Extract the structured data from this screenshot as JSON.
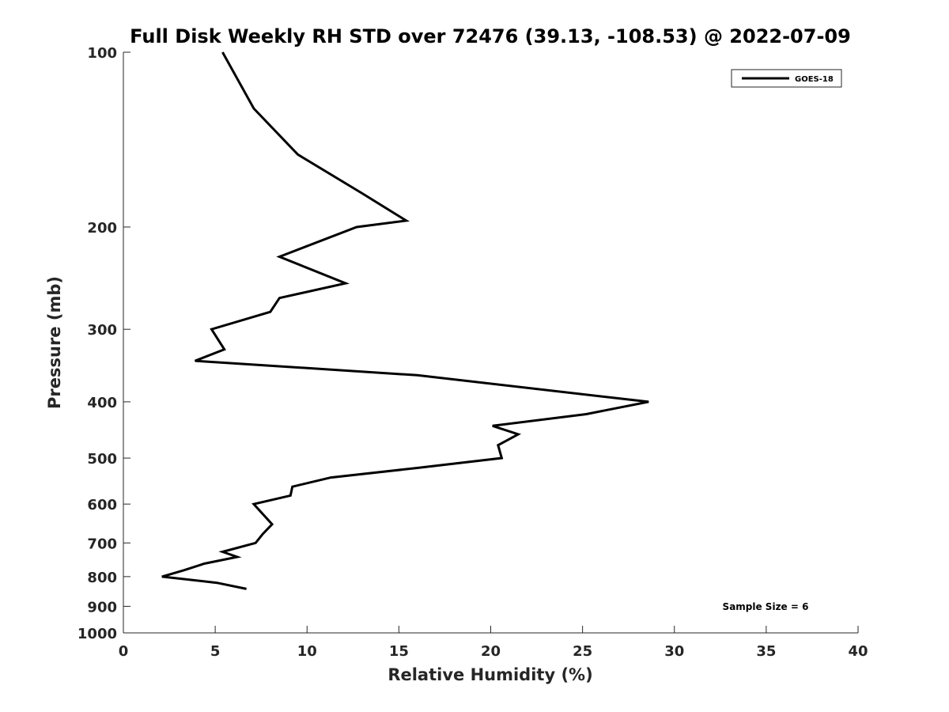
{
  "chart_data": {
    "type": "line",
    "title": "Full Disk Weekly RH STD over 72476 (39.13, -108.53) @ 2022-07-09",
    "xlabel": "Relative Humidity (%)",
    "ylabel": "Pressure (mb)",
    "xlim": [
      0,
      40
    ],
    "ylim": [
      100,
      1000
    ],
    "yscale": "log",
    "yreversed": true,
    "x_ticks": [
      0,
      5,
      10,
      15,
      20,
      25,
      30,
      35,
      40
    ],
    "y_ticks": [
      100,
      200,
      300,
      400,
      500,
      600,
      700,
      800,
      900,
      1000
    ],
    "grid": false,
    "legend_position": "top-right",
    "annotation": "Sample Size = 6",
    "series": [
      {
        "name": "GOES-18",
        "color": "#000000",
        "points": [
          {
            "rh": 5.4,
            "p": 100
          },
          {
            "rh": 7.1,
            "p": 125
          },
          {
            "rh": 9.5,
            "p": 150
          },
          {
            "rh": 13.0,
            "p": 175
          },
          {
            "rh": 15.4,
            "p": 195
          },
          {
            "rh": 12.7,
            "p": 200
          },
          {
            "rh": 8.5,
            "p": 225
          },
          {
            "rh": 12.1,
            "p": 250
          },
          {
            "rh": 8.5,
            "p": 265
          },
          {
            "rh": 8.0,
            "p": 280
          },
          {
            "rh": 4.8,
            "p": 300
          },
          {
            "rh": 5.5,
            "p": 325
          },
          {
            "rh": 3.9,
            "p": 340
          },
          {
            "rh": 16.0,
            "p": 360
          },
          {
            "rh": 28.6,
            "p": 400
          },
          {
            "rh": 25.2,
            "p": 420
          },
          {
            "rh": 20.1,
            "p": 440
          },
          {
            "rh": 21.5,
            "p": 455
          },
          {
            "rh": 20.4,
            "p": 475
          },
          {
            "rh": 20.6,
            "p": 500
          },
          {
            "rh": 16.0,
            "p": 520
          },
          {
            "rh": 11.3,
            "p": 540
          },
          {
            "rh": 9.2,
            "p": 560
          },
          {
            "rh": 9.1,
            "p": 580
          },
          {
            "rh": 7.1,
            "p": 600
          },
          {
            "rh": 8.1,
            "p": 650
          },
          {
            "rh": 7.6,
            "p": 675
          },
          {
            "rh": 7.2,
            "p": 700
          },
          {
            "rh": 5.4,
            "p": 725
          },
          {
            "rh": 6.2,
            "p": 740
          },
          {
            "rh": 4.4,
            "p": 760
          },
          {
            "rh": 3.3,
            "p": 780
          },
          {
            "rh": 2.1,
            "p": 800
          },
          {
            "rh": 5.1,
            "p": 820
          },
          {
            "rh": 6.7,
            "p": 840
          }
        ]
      }
    ]
  }
}
